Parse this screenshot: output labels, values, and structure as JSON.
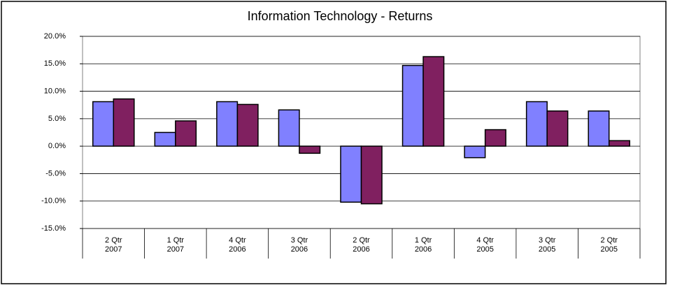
{
  "chart_data": {
    "type": "bar",
    "title": "Information Technology  -  Returns",
    "categories": [
      [
        "2 Qtr",
        "2007"
      ],
      [
        "1 Qtr",
        "2007"
      ],
      [
        "4 Qtr",
        "2006"
      ],
      [
        "3 Qtr",
        "2006"
      ],
      [
        "2 Qtr",
        "2006"
      ],
      [
        "1 Qtr",
        "2006"
      ],
      [
        "4 Qtr",
        "2005"
      ],
      [
        "3 Qtr",
        "2005"
      ],
      [
        "2 Qtr",
        "2005"
      ]
    ],
    "series": [
      {
        "color": "#8080ff",
        "values": [
          8.1,
          2.5,
          8.1,
          6.6,
          -10.2,
          14.7,
          -2.1,
          8.1,
          6.4
        ]
      },
      {
        "color": "#802060",
        "values": [
          8.6,
          4.6,
          7.6,
          -1.3,
          -10.5,
          16.3,
          3.0,
          6.4,
          1.0
        ]
      }
    ],
    "ylim": [
      -15,
      20
    ],
    "yticks": [
      {
        "value": -15,
        "label": "-15.0%"
      },
      {
        "value": -10,
        "label": "-10.0%"
      },
      {
        "value": -5,
        "label": "-5.0%"
      },
      {
        "value": 0,
        "label": "0.0%"
      },
      {
        "value": 5,
        "label": "5.0%"
      },
      {
        "value": 10,
        "label": "10.0%"
      },
      {
        "value": 15,
        "label": "15.0%"
      },
      {
        "value": 20,
        "label": "20.0%"
      }
    ],
    "grid": true
  }
}
